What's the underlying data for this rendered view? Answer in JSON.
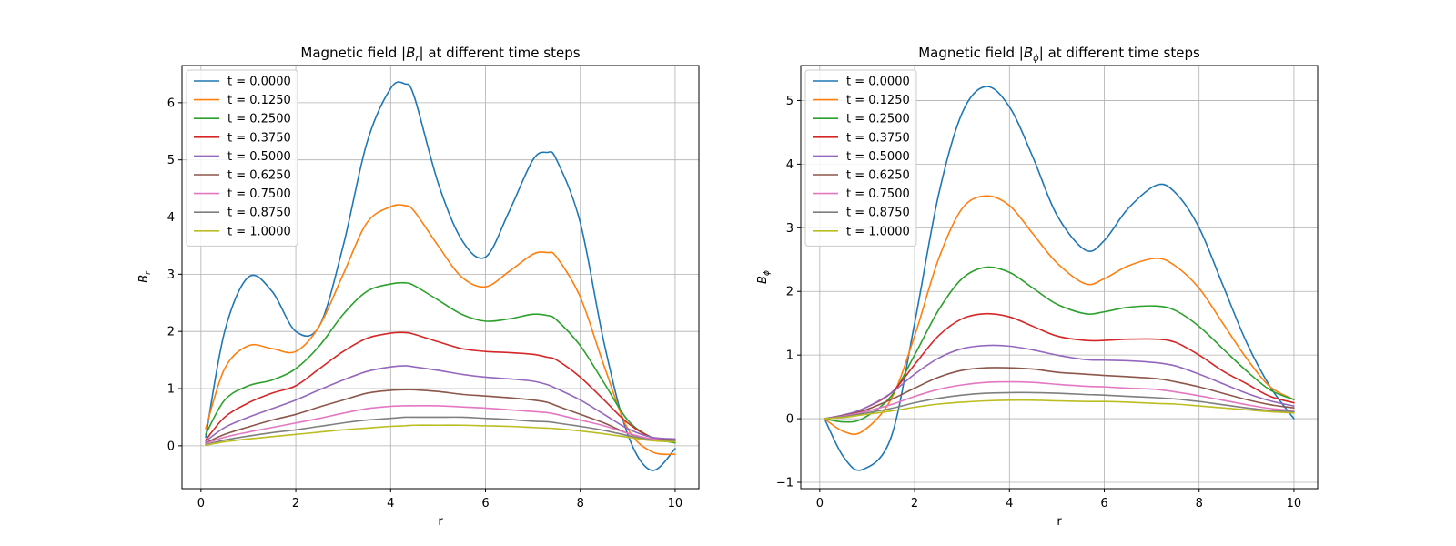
{
  "chart_data": [
    {
      "type": "line",
      "title": "Magnetic field |B_r| at different time steps",
      "title_parts": [
        "Magnetic field |",
        "B",
        "r",
        "| at different time steps"
      ],
      "xlabel": "r",
      "ylabel": "B_r",
      "ylabel_parts": [
        "B",
        "r"
      ],
      "xlim": [
        -0.4,
        10.5
      ],
      "ylim": [
        -0.75,
        6.65
      ],
      "xticks": [
        0,
        2,
        4,
        6,
        8,
        10
      ],
      "yticks": [
        0,
        1,
        2,
        3,
        4,
        5,
        6
      ],
      "grid": true,
      "legend_position": "upper-left",
      "x": [
        0.1,
        0.5,
        1.0,
        1.5,
        2.0,
        2.5,
        3.0,
        3.5,
        4.0,
        4.3,
        4.5,
        5.0,
        5.5,
        6.0,
        6.5,
        7.0,
        7.3,
        7.5,
        8.0,
        8.5,
        9.0,
        9.5,
        10.0
      ],
      "series": [
        {
          "name": "t = 0.0000",
          "color": "#1f77b4",
          "values": [
            0.15,
            2.0,
            2.95,
            2.7,
            2.0,
            2.1,
            3.5,
            5.3,
            6.25,
            6.33,
            6.1,
            4.6,
            3.6,
            3.3,
            4.1,
            5.0,
            5.13,
            5.0,
            3.9,
            1.8,
            0.2,
            -0.43,
            -0.05
          ]
        },
        {
          "name": "t = 0.1250",
          "color": "#ff7f0e",
          "values": [
            0.3,
            1.35,
            1.75,
            1.7,
            1.65,
            2.1,
            3.0,
            3.9,
            4.18,
            4.2,
            4.1,
            3.5,
            2.95,
            2.78,
            3.05,
            3.35,
            3.38,
            3.3,
            2.6,
            1.4,
            0.3,
            -0.1,
            -0.15
          ]
        },
        {
          "name": "t = 0.2500",
          "color": "#2ca02c",
          "values": [
            0.2,
            0.8,
            1.05,
            1.15,
            1.35,
            1.75,
            2.3,
            2.7,
            2.83,
            2.85,
            2.8,
            2.55,
            2.3,
            2.18,
            2.22,
            2.3,
            2.28,
            2.2,
            1.75,
            1.1,
            0.45,
            0.15,
            0.05
          ]
        },
        {
          "name": "t = 0.3750",
          "color": "#d62728",
          "values": [
            0.1,
            0.5,
            0.75,
            0.92,
            1.05,
            1.35,
            1.65,
            1.88,
            1.97,
            1.98,
            1.95,
            1.82,
            1.7,
            1.65,
            1.63,
            1.6,
            1.55,
            1.5,
            1.2,
            0.8,
            0.4,
            0.15,
            0.1
          ]
        },
        {
          "name": "t = 0.5000",
          "color": "#9467bd",
          "values": [
            0.08,
            0.32,
            0.5,
            0.65,
            0.8,
            0.98,
            1.15,
            1.3,
            1.38,
            1.4,
            1.38,
            1.32,
            1.25,
            1.2,
            1.17,
            1.13,
            1.07,
            1.0,
            0.8,
            0.55,
            0.3,
            0.15,
            0.12
          ]
        },
        {
          "name": "t = 0.6250",
          "color": "#8c564b",
          "values": [
            0.05,
            0.2,
            0.33,
            0.45,
            0.55,
            0.68,
            0.8,
            0.92,
            0.97,
            0.98,
            0.98,
            0.95,
            0.9,
            0.87,
            0.84,
            0.8,
            0.76,
            0.7,
            0.55,
            0.4,
            0.22,
            0.12,
            0.1
          ]
        },
        {
          "name": "t = 0.7500",
          "color": "#e377c2",
          "values": [
            0.04,
            0.15,
            0.24,
            0.32,
            0.4,
            0.48,
            0.57,
            0.65,
            0.69,
            0.7,
            0.7,
            0.7,
            0.68,
            0.66,
            0.63,
            0.6,
            0.58,
            0.55,
            0.45,
            0.35,
            0.22,
            0.12,
            0.08
          ]
        },
        {
          "name": "t = 0.8750",
          "color": "#7f7f7f",
          "values": [
            0.02,
            0.1,
            0.17,
            0.23,
            0.28,
            0.34,
            0.4,
            0.45,
            0.48,
            0.5,
            0.5,
            0.5,
            0.5,
            0.48,
            0.46,
            0.43,
            0.42,
            0.4,
            0.34,
            0.27,
            0.18,
            0.1,
            0.08
          ]
        },
        {
          "name": "t = 1.0000",
          "color": "#bcbd22",
          "values": [
            0.01,
            0.07,
            0.12,
            0.16,
            0.2,
            0.24,
            0.28,
            0.31,
            0.34,
            0.35,
            0.36,
            0.36,
            0.36,
            0.35,
            0.34,
            0.32,
            0.31,
            0.3,
            0.26,
            0.21,
            0.15,
            0.09,
            0.07
          ]
        }
      ]
    },
    {
      "type": "line",
      "title": "Magnetic field |B_ϕ| at different time steps",
      "title_parts": [
        "Magnetic field |",
        "B",
        "ϕ",
        "| at different time steps"
      ],
      "xlabel": "r",
      "ylabel": "B_ϕ",
      "ylabel_parts": [
        "B",
        "ϕ"
      ],
      "xlim": [
        -0.4,
        10.5
      ],
      "ylim": [
        -1.1,
        5.55
      ],
      "xticks": [
        0,
        2,
        4,
        6,
        8,
        10
      ],
      "yticks": [
        -1,
        0,
        1,
        2,
        3,
        4,
        5
      ],
      "grid": true,
      "legend_position": "upper-left",
      "x": [
        0.1,
        0.5,
        0.9,
        1.5,
        2.0,
        2.5,
        3.0,
        3.5,
        4.0,
        4.5,
        5.0,
        5.6,
        6.0,
        6.5,
        7.1,
        7.5,
        8.0,
        8.5,
        9.0,
        9.5,
        10.0
      ],
      "series": [
        {
          "name": "t = 0.0000",
          "color": "#1f77b4",
          "values": [
            0.0,
            -0.6,
            -0.8,
            -0.3,
            1.5,
            3.5,
            4.8,
            5.22,
            4.9,
            4.1,
            3.2,
            2.65,
            2.8,
            3.3,
            3.67,
            3.55,
            3.0,
            2.1,
            1.2,
            0.5,
            0.0
          ]
        },
        {
          "name": "t = 0.1250",
          "color": "#ff7f0e",
          "values": [
            0.0,
            -0.2,
            -0.2,
            0.3,
            1.3,
            2.5,
            3.3,
            3.5,
            3.35,
            2.9,
            2.45,
            2.12,
            2.2,
            2.4,
            2.52,
            2.4,
            2.05,
            1.5,
            0.95,
            0.5,
            0.3
          ]
        },
        {
          "name": "t = 0.2500",
          "color": "#2ca02c",
          "values": [
            0.0,
            -0.05,
            0.0,
            0.35,
            1.0,
            1.7,
            2.2,
            2.38,
            2.3,
            2.05,
            1.8,
            1.65,
            1.68,
            1.75,
            1.77,
            1.7,
            1.45,
            1.1,
            0.75,
            0.45,
            0.3
          ]
        },
        {
          "name": "t = 0.3750",
          "color": "#d62728",
          "values": [
            0.0,
            0.05,
            0.15,
            0.4,
            0.85,
            1.3,
            1.57,
            1.65,
            1.6,
            1.45,
            1.3,
            1.23,
            1.23,
            1.25,
            1.25,
            1.2,
            1.0,
            0.75,
            0.55,
            0.35,
            0.25
          ]
        },
        {
          "name": "t = 0.5000",
          "color": "#9467bd",
          "values": [
            0.0,
            0.06,
            0.15,
            0.4,
            0.7,
            0.95,
            1.1,
            1.15,
            1.14,
            1.08,
            1.0,
            0.93,
            0.92,
            0.91,
            0.88,
            0.83,
            0.7,
            0.55,
            0.4,
            0.28,
            0.2
          ]
        },
        {
          "name": "t = 0.6250",
          "color": "#8c564b",
          "values": [
            0.0,
            0.05,
            0.12,
            0.3,
            0.48,
            0.65,
            0.76,
            0.8,
            0.8,
            0.78,
            0.73,
            0.7,
            0.68,
            0.66,
            0.63,
            0.58,
            0.5,
            0.4,
            0.3,
            0.22,
            0.17
          ]
        },
        {
          "name": "t = 0.7500",
          "color": "#e377c2",
          "values": [
            0.0,
            0.04,
            0.1,
            0.22,
            0.35,
            0.46,
            0.53,
            0.57,
            0.58,
            0.57,
            0.54,
            0.51,
            0.5,
            0.48,
            0.46,
            0.42,
            0.36,
            0.29,
            0.22,
            0.16,
            0.13
          ]
        },
        {
          "name": "t = 0.8750",
          "color": "#7f7f7f",
          "values": [
            0.0,
            0.03,
            0.08,
            0.16,
            0.25,
            0.32,
            0.37,
            0.4,
            0.41,
            0.41,
            0.4,
            0.38,
            0.37,
            0.35,
            0.33,
            0.31,
            0.27,
            0.22,
            0.17,
            0.13,
            0.11
          ]
        },
        {
          "name": "t = 1.0000",
          "color": "#bcbd22",
          "values": [
            0.0,
            0.02,
            0.06,
            0.12,
            0.18,
            0.23,
            0.26,
            0.28,
            0.29,
            0.29,
            0.28,
            0.27,
            0.27,
            0.26,
            0.24,
            0.23,
            0.2,
            0.17,
            0.14,
            0.11,
            0.09
          ]
        }
      ]
    }
  ]
}
